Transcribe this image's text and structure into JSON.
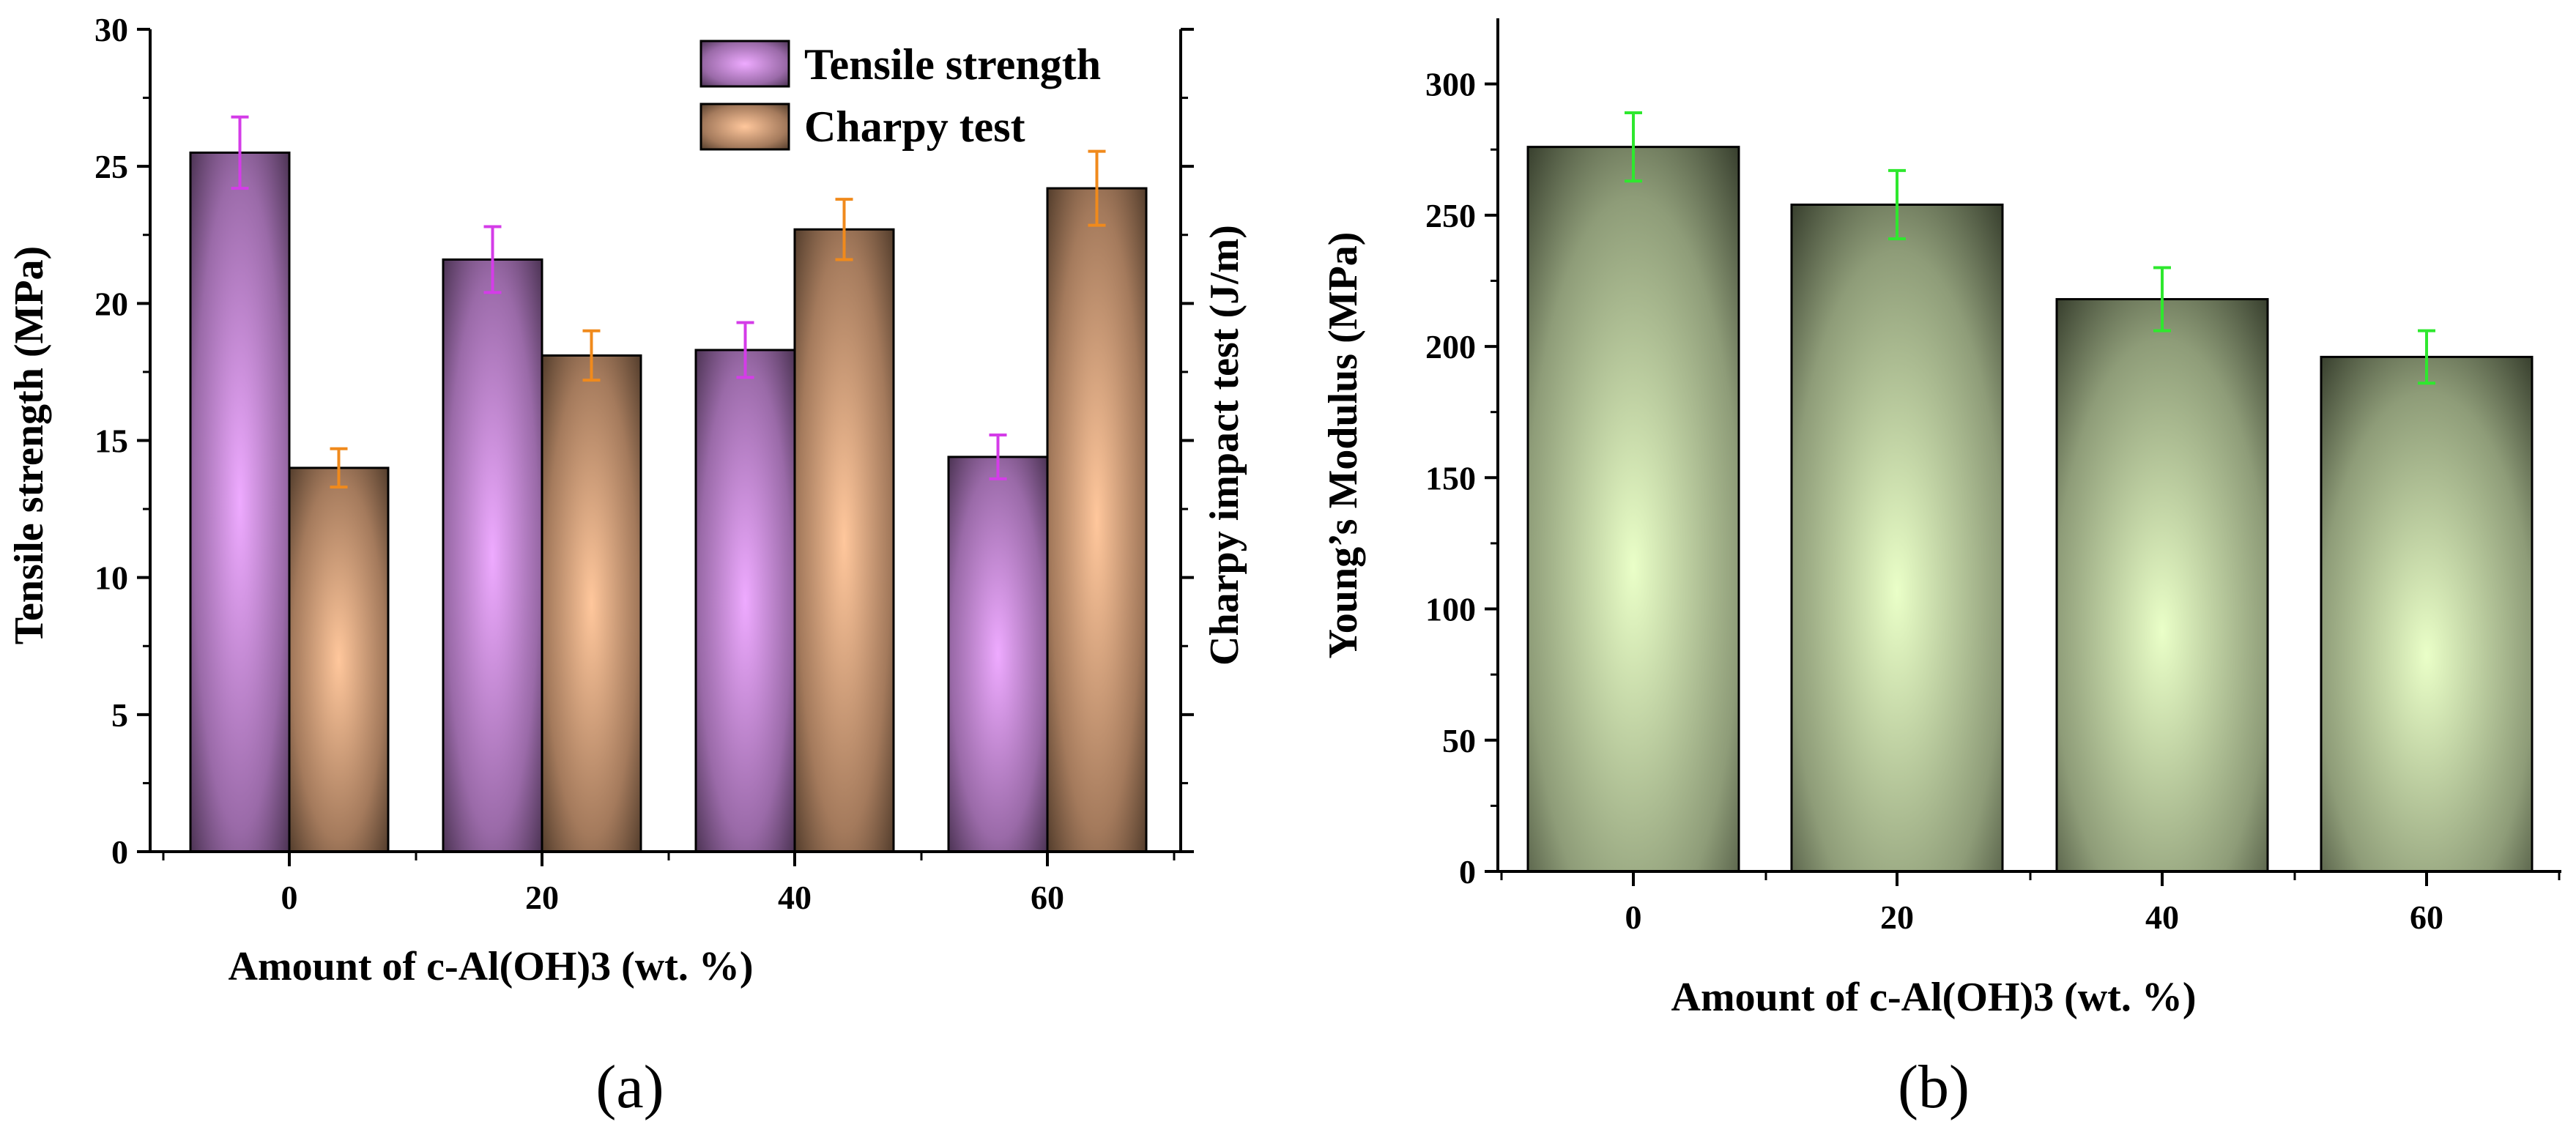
{
  "chart_data": [
    {
      "panel_label": "(a)",
      "type": "bar",
      "categories": [
        "0",
        "20",
        "40",
        "60"
      ],
      "xlabel": "Amount of c-Al(OH)3 (wt. %)",
      "ylabel": "Tensile strength (MPa)",
      "ylim": [
        0,
        30
      ],
      "yticks": [
        "0",
        "5",
        "10",
        "15",
        "20",
        "25",
        "30"
      ],
      "y2label": "Charpy impact test (J/m)",
      "legend_position": "top-right",
      "series": [
        {
          "name": "Tensile strength",
          "axis": "left",
          "values": [
            25.5,
            21.6,
            18.3,
            14.4
          ],
          "errors": [
            1.3,
            1.2,
            1.0,
            0.8
          ],
          "color": "#e8a8f8",
          "error_color": "#d43ce8"
        },
        {
          "name": "Charpy test",
          "axis": "right",
          "values": [
            14.0,
            18.1,
            22.7,
            24.2
          ],
          "errors": [
            0.7,
            0.9,
            1.1,
            1.35
          ],
          "color": "#f5c49a",
          "error_color": "#f08a1c"
        }
      ]
    },
    {
      "panel_label": "(b)",
      "type": "bar",
      "categories": [
        "0",
        "20",
        "40",
        "60"
      ],
      "xlabel": "Amount of c-Al(OH)3 (wt. %)",
      "ylabel": "Young’s Modulus (MPa)",
      "ylim": [
        0,
        325
      ],
      "yticks": [
        "0",
        "50",
        "100",
        "150",
        "200",
        "250",
        "300"
      ],
      "series": [
        {
          "values": [
            276,
            254,
            218,
            196
          ],
          "errors": [
            13,
            13,
            12,
            10
          ],
          "color": "#e4f8c4",
          "error_color": "#2ee82e"
        }
      ]
    }
  ]
}
